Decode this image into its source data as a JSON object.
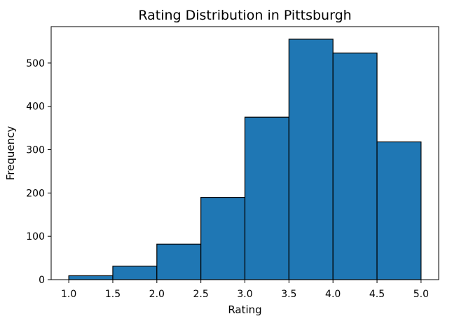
{
  "colors": {
    "bar_fill": "#1f77b4",
    "bar_edge": "#000000",
    "axes": "#000000",
    "background": "#ffffff"
  },
  "chart_data": {
    "type": "bar",
    "subtype": "histogram",
    "title": "Rating Distribution in Pittsburgh",
    "xlabel": "Rating",
    "ylabel": "Frequency",
    "bin_edges": [
      1.0,
      1.5,
      2.0,
      2.5,
      3.0,
      3.5,
      4.0,
      4.5,
      5.0
    ],
    "values": [
      9,
      31,
      82,
      190,
      375,
      555,
      523,
      318
    ],
    "xlim": [
      0.8,
      5.2
    ],
    "ylim": [
      0,
      584
    ],
    "x_ticks": [
      1.0,
      1.5,
      2.0,
      2.5,
      3.0,
      3.5,
      4.0,
      4.5,
      5.0
    ],
    "x_tick_labels": [
      "1.0",
      "1.5",
      "2.0",
      "2.5",
      "3.0",
      "3.5",
      "4.0",
      "4.5",
      "5.0"
    ],
    "y_ticks": [
      0,
      100,
      200,
      300,
      400,
      500
    ],
    "y_tick_labels": [
      "0",
      "100",
      "200",
      "300",
      "400",
      "500"
    ],
    "grid": false,
    "legend": "none"
  }
}
